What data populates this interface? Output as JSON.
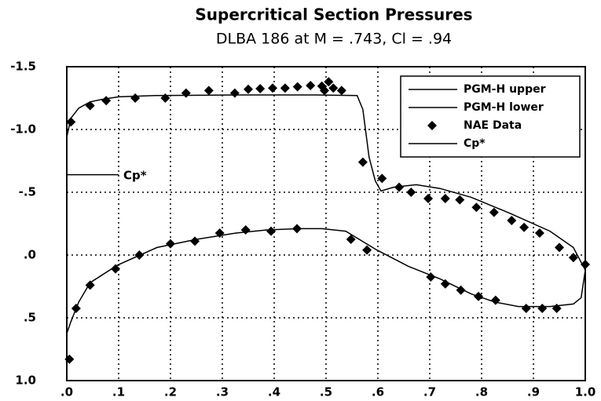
{
  "chart_data": {
    "type": "line",
    "title": "Supercritical Section Pressures",
    "subtitle": "DLBA 186 at M = .743, Cl = .94",
    "xlim": [
      0,
      1.0
    ],
    "ylim": [
      -1.5,
      1.0
    ],
    "y_reversed": true,
    "grid": true,
    "legend": "upper right",
    "xticks": [
      {
        "value": 0,
        "label": ".0"
      },
      {
        "value": 0.1,
        "label": ".1"
      },
      {
        "value": 0.2,
        "label": ".2"
      },
      {
        "value": 0.3,
        "label": ".3"
      },
      {
        "value": 0.4,
        "label": ".4"
      },
      {
        "value": 0.5,
        "label": ".5"
      },
      {
        "value": 0.6,
        "label": ".6"
      },
      {
        "value": 0.7,
        "label": ".7"
      },
      {
        "value": 0.8,
        "label": ".8"
      },
      {
        "value": 0.9,
        "label": ".9"
      },
      {
        "value": 1.0,
        "label": "1.0"
      }
    ],
    "yticks": [
      {
        "value": -1.5,
        "label": "-1.5"
      },
      {
        "value": -1.0,
        "label": "-1.0"
      },
      {
        "value": -0.5,
        "label": "-.5"
      },
      {
        "value": 0,
        "label": ".0"
      },
      {
        "value": 0.5,
        "label": ".5"
      },
      {
        "value": 1.0,
        "label": "1.0"
      }
    ],
    "series": [
      {
        "name": "PGM-H upper",
        "type": "line",
        "color": "#000000",
        "x": [
          0,
          0.008,
          0.023,
          0.045,
          0.068,
          0.1,
          0.17,
          0.33,
          0.48,
          0.56,
          0.571,
          0.583,
          0.595,
          0.606,
          0.63,
          0.674,
          0.72,
          0.78,
          0.856,
          0.932,
          0.977,
          1.0
        ],
        "values": [
          -0.94,
          -1.09,
          -1.17,
          -1.22,
          -1.24,
          -1.26,
          -1.27,
          -1.275,
          -1.275,
          -1.27,
          -1.16,
          -0.78,
          -0.59,
          -0.51,
          -0.54,
          -0.56,
          -0.53,
          -0.46,
          -0.33,
          -0.19,
          -0.06,
          0.12
        ]
      },
      {
        "name": "PGM-H lower",
        "type": "line",
        "color": "#000000",
        "x": [
          1.0,
          0.992,
          0.977,
          0.932,
          0.871,
          0.826,
          0.78,
          0.72,
          0.659,
          0.598,
          0.538,
          0.492,
          0.447,
          0.386,
          0.326,
          0.25,
          0.174,
          0.098,
          0.045,
          0.023,
          0.008,
          0
        ],
        "values": [
          0.12,
          0.34,
          0.39,
          0.41,
          0.41,
          0.375,
          0.31,
          0.19,
          0.09,
          -0.04,
          -0.19,
          -0.21,
          -0.21,
          -0.2,
          -0.175,
          -0.125,
          -0.06,
          0.08,
          0.22,
          0.375,
          0.53,
          0.625
        ]
      },
      {
        "name": "NAE Data",
        "type": "scatter",
        "color": "#000000",
        "x": [
          0.005,
          0.008,
          0.018,
          0.045,
          0.045,
          0.076,
          0.094,
          0.132,
          0.14,
          0.19,
          0.2,
          0.23,
          0.247,
          0.274,
          0.295,
          0.324,
          0.345,
          0.35,
          0.373,
          0.394,
          0.397,
          0.421,
          0.444,
          0.445,
          0.47,
          0.492,
          0.497,
          0.505,
          0.514,
          0.53,
          0.548,
          0.571,
          0.579,
          0.608,
          0.641,
          0.664,
          0.697,
          0.702,
          0.73,
          0.73,
          0.758,
          0.76,
          0.79,
          0.794,
          0.824,
          0.827,
          0.858,
          0.882,
          0.886,
          0.912,
          0.917,
          0.945,
          0.95,
          0.977,
          1.0
        ],
        "values": [
          0.83,
          -1.06,
          0.425,
          0.24,
          -1.19,
          -1.23,
          0.11,
          -1.25,
          0.0,
          -1.25,
          -0.09,
          -1.29,
          -0.11,
          -1.31,
          -0.175,
          -1.29,
          -0.2,
          -1.32,
          -1.325,
          -0.19,
          -1.33,
          -1.33,
          -0.21,
          -1.34,
          -1.35,
          -1.345,
          -1.31,
          -1.38,
          -1.33,
          -1.31,
          -0.125,
          -0.74,
          -0.04,
          -0.61,
          -0.54,
          -0.5,
          -0.45,
          0.175,
          0.23,
          -0.45,
          -0.44,
          0.28,
          -0.38,
          0.33,
          -0.34,
          0.36,
          -0.275,
          -0.22,
          0.425,
          -0.175,
          0.425,
          0.425,
          -0.06,
          0.02,
          0.075
        ]
      },
      {
        "name": "Cp*",
        "type": "line",
        "color": "#000000",
        "x": [
          0,
          0.1
        ],
        "values": [
          -0.64,
          -0.64
        ]
      }
    ],
    "annotation": "Cp*"
  }
}
